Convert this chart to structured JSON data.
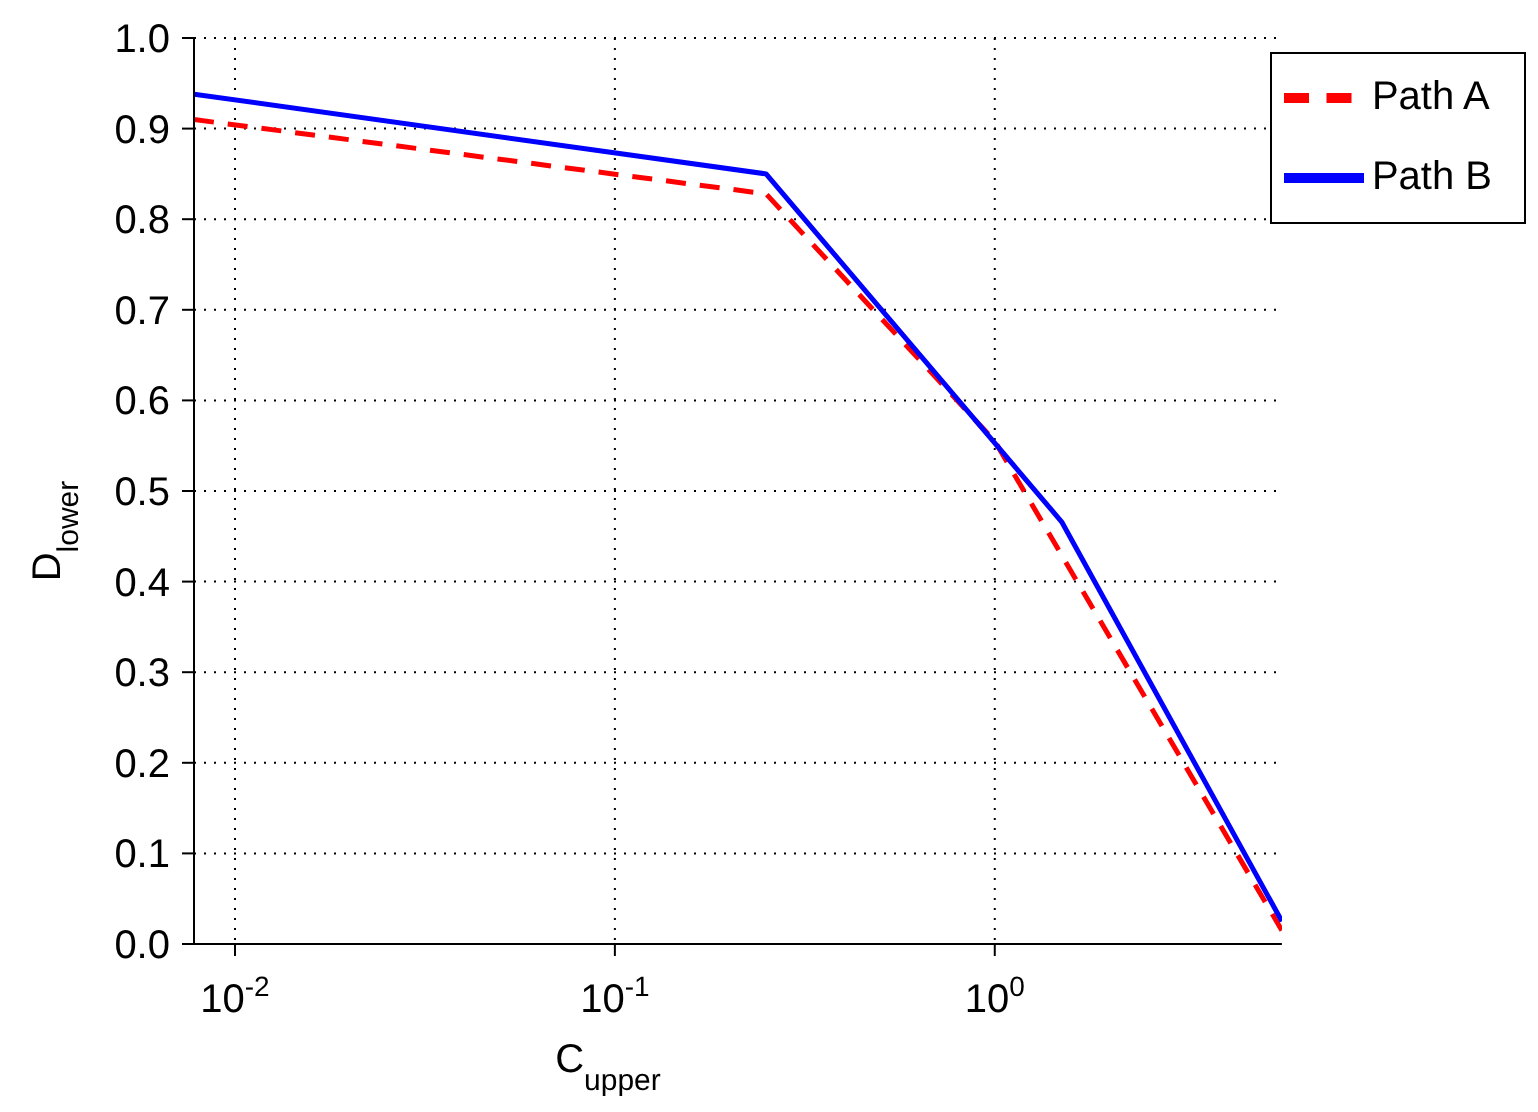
{
  "chart_data": {
    "type": "line",
    "xlabel": "C$_{upper}$",
    "ylabel": "D$_{lower}$",
    "log": "x",
    "xlim": [
      0.0078,
      5.7
    ],
    "xticks": [
      {
        "value": 0.01,
        "label": "10$^{-2}$"
      },
      {
        "value": 0.1,
        "label": "10$^{-1}$"
      },
      {
        "value": 1,
        "label": "10$^{0}$"
      }
    ],
    "ylim": [
      0,
      1
    ],
    "yticks": [
      {
        "value": 0,
        "label": "0.0"
      },
      0.1,
      0.2,
      0.3,
      0.4,
      0.5,
      0.6,
      0.7,
      0.8,
      0.9,
      {
        "value": 1,
        "label": "1.0"
      }
    ],
    "grid": true,
    "legend": "top right",
    "series": [
      {
        "name": "Path A",
        "color": "#ff0000",
        "line_style": "dashed",
        "x": [
          0.0078,
          0.25,
          1,
          5.7
        ],
        "values": [
          0.91,
          0.828,
          0.555,
          0.015
        ]
      },
      {
        "name": "Path B",
        "color": "#0000ff",
        "line_style": "solid",
        "x": [
          0.0078,
          0.25,
          1.5,
          5.7
        ],
        "values": [
          0.938,
          0.85,
          0.466,
          0.025
        ]
      }
    ]
  }
}
